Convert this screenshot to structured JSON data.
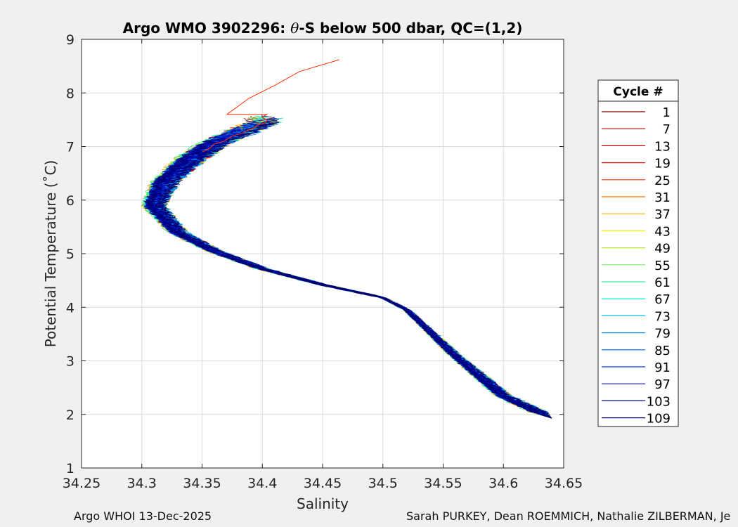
{
  "chart_data": {
    "type": "line",
    "title": "Argo WMO 3902296: θ-S below 500 dbar,  QC=(1,2)",
    "title_prefix": "Argo WMO 3902296: ",
    "title_theta": "θ",
    "title_suffix": "-S below 500 dbar,  QC=(1,2)",
    "xlabel": "Salinity",
    "ylabel": "Potential Temperature (˚C)",
    "xlim": [
      34.25,
      34.65
    ],
    "ylim": [
      1,
      9
    ],
    "xticks": [
      34.25,
      34.3,
      34.35,
      34.4,
      34.45,
      34.5,
      34.55,
      34.6,
      34.65
    ],
    "xtick_labels": [
      "34.25",
      "34.3",
      "34.35",
      "34.4",
      "34.45",
      "34.5",
      "34.55",
      "34.6",
      "34.65"
    ],
    "yticks": [
      1,
      2,
      3,
      4,
      5,
      6,
      7,
      8,
      9
    ],
    "ytick_labels": [
      "1",
      "2",
      "3",
      "4",
      "5",
      "6",
      "7",
      "8",
      "9"
    ],
    "grid": true,
    "legend_title": "Cycle #",
    "legend_position": "right",
    "series": [
      {
        "name": "1",
        "color": "#800000"
      },
      {
        "name": "7",
        "color": "#a00000"
      },
      {
        "name": "13",
        "color": "#c00000"
      },
      {
        "name": "19",
        "color": "#e01000"
      },
      {
        "name": "25",
        "color": "#ff3000"
      },
      {
        "name": "31",
        "color": "#ff7000"
      },
      {
        "name": "37",
        "color": "#ffb000"
      },
      {
        "name": "43",
        "color": "#f0f000"
      },
      {
        "name": "49",
        "color": "#b0f030"
      },
      {
        "name": "55",
        "color": "#70f060"
      },
      {
        "name": "61",
        "color": "#30f0a0"
      },
      {
        "name": "67",
        "color": "#00e0d0"
      },
      {
        "name": "73",
        "color": "#00c0f0"
      },
      {
        "name": "79",
        "color": "#0090f0"
      },
      {
        "name": "85",
        "color": "#0060f0"
      },
      {
        "name": "91",
        "color": "#0030e0"
      },
      {
        "name": "97",
        "color": "#0010c0"
      },
      {
        "name": "103",
        "color": "#000090"
      },
      {
        "name": "109",
        "color": "#000070"
      }
    ],
    "envelope": {
      "salinity": [
        34.64,
        34.6,
        34.56,
        34.52,
        34.5,
        34.45,
        34.4,
        34.36,
        34.33,
        34.31,
        34.32,
        34.34,
        34.36,
        34.38,
        34.4
      ],
      "theta": [
        1.93,
        2.35,
        3.1,
        3.95,
        4.18,
        4.42,
        4.72,
        5.05,
        5.4,
        5.9,
        6.35,
        6.75,
        7.05,
        7.25,
        7.45
      ]
    },
    "outlier": {
      "salinity": [
        34.37,
        34.39,
        34.41,
        34.43,
        34.465
      ],
      "theta": [
        7.6,
        7.9,
        8.15,
        8.4,
        8.62
      ]
    }
  },
  "footer": {
    "left": "Argo WHOI 13-Dec-2025",
    "right": "Sarah PURKEY, Dean ROEMMICH, Nathalie ZILBERMAN, Je"
  }
}
